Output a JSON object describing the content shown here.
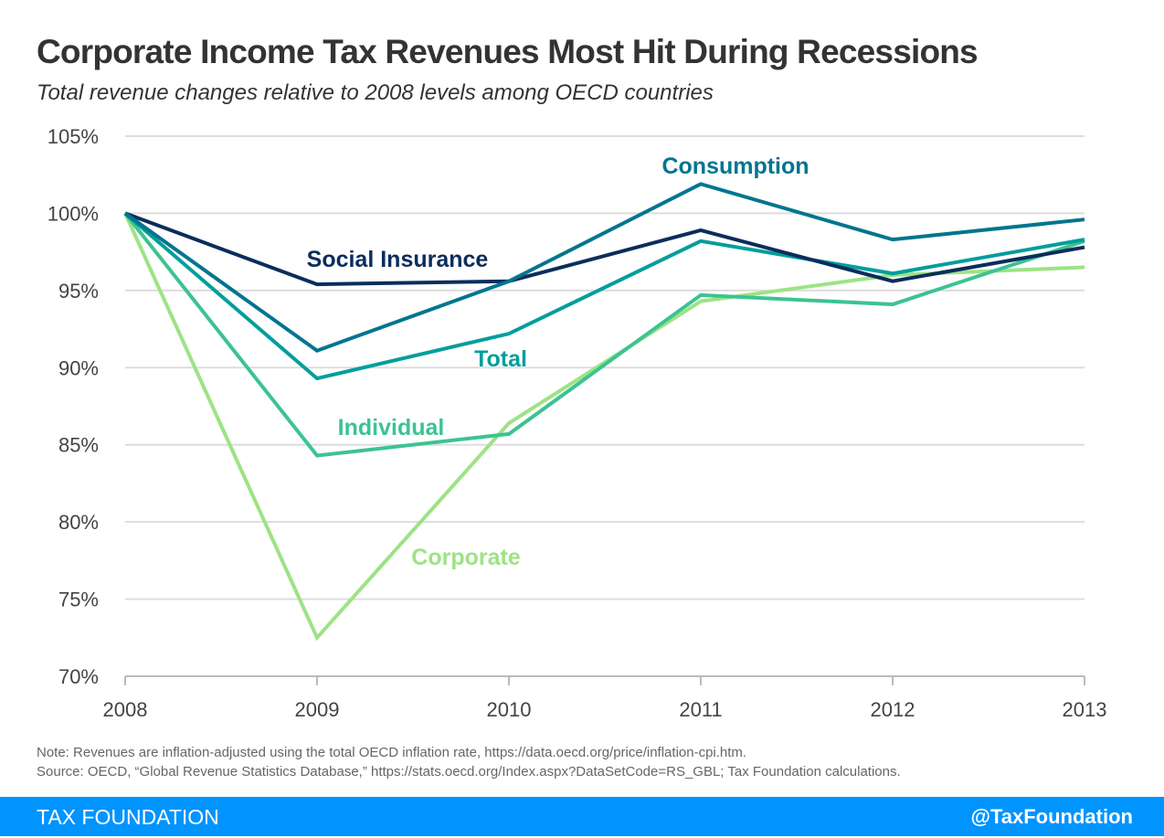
{
  "title": "Corporate Income Tax Revenues Most Hit During Recessions",
  "subtitle": "Total revenue changes relative to 2008 levels among OECD countries",
  "note": "Note: Revenues are inflation-adjusted using the total OECD inflation rate, https://data.oecd.org/price/inflation-cpi.htm.",
  "source": "Source: OECD, “Global Revenue Statistics Database,” https://stats.oecd.org/Index.aspx?DataSetCode=RS_GBL; Tax Foundation calculations.",
  "footer": {
    "brand": "TAX FOUNDATION",
    "handle": "@TaxFoundation",
    "color": "#0094ff"
  },
  "chart_data": {
    "type": "line",
    "title": "Corporate Income Tax Revenues Most Hit During Recessions",
    "x": [
      "2008",
      "2009",
      "2010",
      "2011",
      "2012",
      "2013"
    ],
    "ylim": [
      70,
      105
    ],
    "yticks": [
      105,
      100,
      95,
      90,
      85,
      80,
      75,
      70
    ],
    "ytick_labels": [
      "105%",
      "100%",
      "95%",
      "90%",
      "85%",
      "80%",
      "75%",
      "70%"
    ],
    "grid": true,
    "legend": "inline labels",
    "series": [
      {
        "name": "Consumption",
        "color": "#00758f",
        "values": [
          100,
          91.1,
          95.6,
          101.9,
          98.3,
          99.6
        ]
      },
      {
        "name": "Social Insurance",
        "color": "#0b2d5c",
        "values": [
          100,
          95.4,
          95.6,
          98.9,
          95.6,
          97.8
        ]
      },
      {
        "name": "Total",
        "color": "#009e9c",
        "values": [
          100,
          89.3,
          92.2,
          98.2,
          96.1,
          98.3
        ]
      },
      {
        "name": "Individual",
        "color": "#3cc391",
        "values": [
          100,
          84.3,
          85.7,
          94.7,
          94.1,
          98.2
        ]
      },
      {
        "name": "Corporate",
        "color": "#9de385",
        "values": [
          100,
          72.5,
          86.4,
          94.3,
          96.0,
          96.5
        ]
      }
    ]
  }
}
